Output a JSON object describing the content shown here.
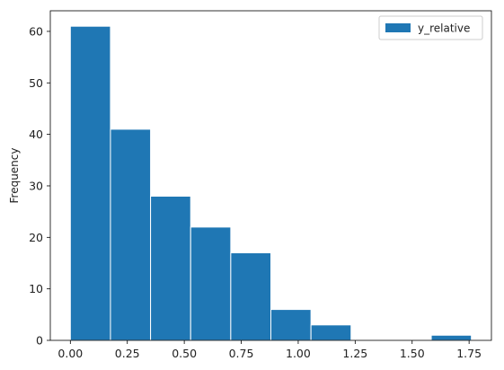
{
  "chart_data": {
    "type": "histogram",
    "ylabel": "Frequency",
    "xlabel": "",
    "legend": {
      "entries": [
        "y_relative"
      ],
      "placement": "top-right"
    },
    "series": [
      {
        "name": "y_relative",
        "color": "#1f77b4",
        "bins": [
          {
            "x0": 0.0,
            "x1": 0.176,
            "count": 61
          },
          {
            "x0": 0.176,
            "x1": 0.352,
            "count": 41
          },
          {
            "x0": 0.352,
            "x1": 0.528,
            "count": 28
          },
          {
            "x0": 0.528,
            "x1": 0.704,
            "count": 22
          },
          {
            "x0": 0.704,
            "x1": 0.88,
            "count": 17
          },
          {
            "x0": 0.88,
            "x1": 1.056,
            "count": 6
          },
          {
            "x0": 1.056,
            "x1": 1.232,
            "count": 3
          },
          {
            "x0": 1.232,
            "x1": 1.408,
            "count": 0
          },
          {
            "x0": 1.408,
            "x1": 1.584,
            "count": 0
          },
          {
            "x0": 1.584,
            "x1": 1.76,
            "count": 1
          }
        ]
      }
    ],
    "xlim": [
      -0.088,
      1.848
    ],
    "ylim": [
      0,
      64
    ],
    "xticks": [
      0.0,
      0.25,
      0.5,
      0.75,
      1.0,
      1.25,
      1.5,
      1.75
    ],
    "xtick_labels": [
      "0.00",
      "0.25",
      "0.50",
      "0.75",
      "1.00",
      "1.25",
      "1.50",
      "1.75"
    ],
    "yticks": [
      0,
      10,
      20,
      30,
      40,
      50,
      60
    ],
    "ytick_labels": [
      "0",
      "10",
      "20",
      "30",
      "40",
      "50",
      "60"
    ],
    "grid": false,
    "bar_edge_color": "#ffffff"
  }
}
